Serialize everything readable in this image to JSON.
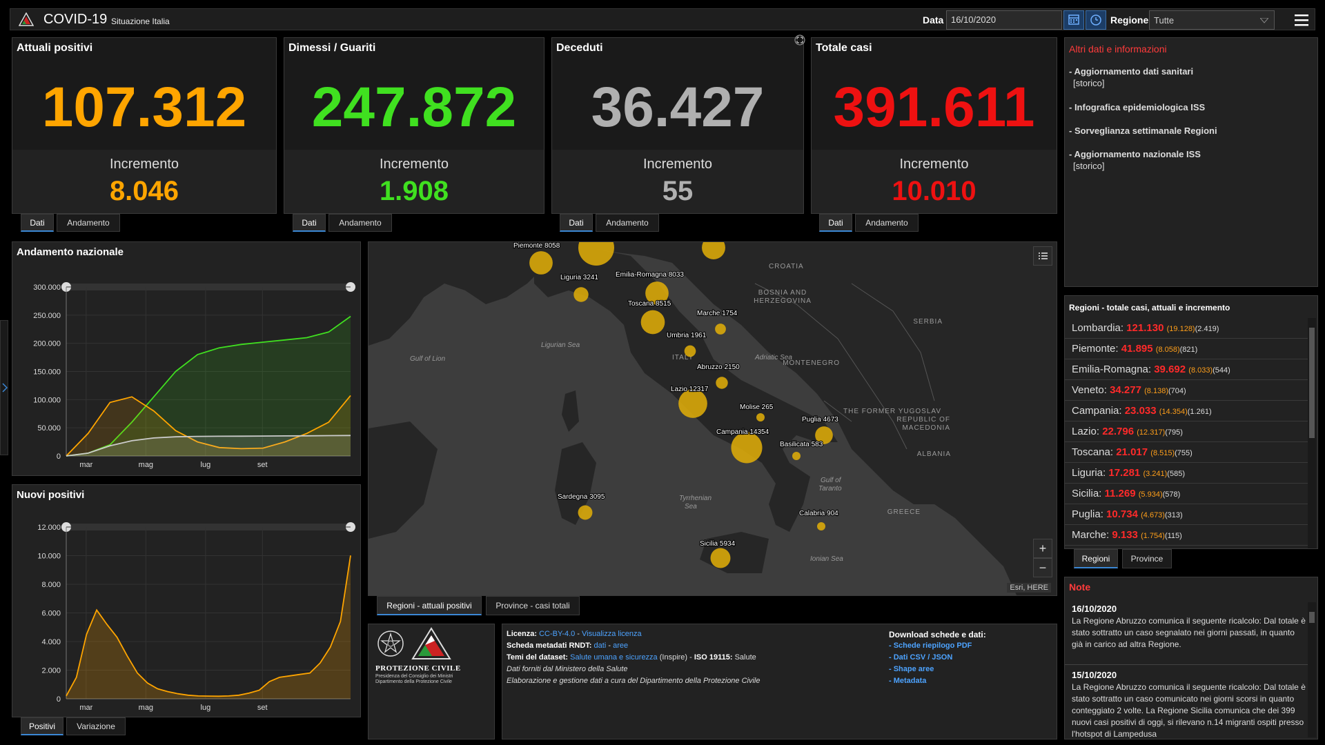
{
  "header": {
    "title": "COVID-19",
    "subtitle": "Situazione Italia",
    "date_label": "Data",
    "date_value": "16/10/2020",
    "region_label": "Regione",
    "region_value": "Tutte"
  },
  "stats": [
    {
      "title": "Attuali positivi",
      "value": "107.312",
      "inc_label": "Incremento",
      "inc": "8.046",
      "color": "#ffa500"
    },
    {
      "title": "Dimessi / Guariti",
      "value": "247.872",
      "inc_label": "Incremento",
      "inc": "1.908",
      "color": "#40e020"
    },
    {
      "title": "Deceduti",
      "value": "36.427",
      "inc_label": "Incremento",
      "inc": "55",
      "color": "#b0b0b0"
    },
    {
      "title": "Totale casi",
      "value": "391.611",
      "inc_label": "Incremento",
      "inc": "10.010",
      "color": "#ee1111"
    }
  ],
  "stat_tabs": {
    "dati": "Dati",
    "andamento": "Andamento"
  },
  "info": {
    "title": "Altri dati e informazioni",
    "links": [
      {
        "text": "- Aggiornamento dati sanitari",
        "sub": "[storico]"
      },
      {
        "text": "- Infografica epidemiologica ISS",
        "sub": ""
      },
      {
        "text": "- Sorveglianza settimanale Regioni",
        "sub": ""
      },
      {
        "text": "- Aggiornamento nazionale ISS",
        "sub": "[storico]"
      }
    ]
  },
  "chart_data": [
    {
      "type": "line",
      "title": "Andamento nazionale",
      "xlabel": "",
      "ylabel": "",
      "x_ticks": [
        "mar",
        "mag",
        "lug",
        "set"
      ],
      "y_ticks": [
        "300.000",
        "250.000",
        "200.000",
        "150.000",
        "100.000",
        "50.000",
        "0"
      ],
      "ylim": [
        0,
        300000
      ],
      "grid": true,
      "series": [
        {
          "color": "#40e020",
          "values": [
            0,
            5000,
            20000,
            60000,
            105000,
            150000,
            180000,
            192000,
            198000,
            202000,
            206000,
            210000,
            220000,
            247872
          ]
        },
        {
          "color": "#ffa500",
          "values": [
            0,
            40000,
            95000,
            105000,
            80000,
            45000,
            25000,
            15000,
            13000,
            14000,
            25000,
            40000,
            60000,
            107312
          ]
        },
        {
          "color": "#cccccc",
          "values": [
            0,
            5000,
            18000,
            27000,
            32000,
            34000,
            34800,
            35000,
            35200,
            35400,
            35600,
            35800,
            36100,
            36427
          ]
        }
      ]
    },
    {
      "type": "area",
      "title": "Nuovi positivi",
      "xlabel": "",
      "ylabel": "",
      "x_ticks": [
        "mar",
        "mag",
        "lug",
        "set"
      ],
      "y_ticks": [
        "12.000",
        "10.000",
        "8.000",
        "6.000",
        "4.000",
        "2.000",
        "0"
      ],
      "ylim": [
        0,
        12000
      ],
      "grid": true,
      "series": [
        {
          "color": "#ffa500",
          "values": [
            200,
            1500,
            4500,
            6200,
            5200,
            4300,
            3000,
            1800,
            1100,
            700,
            500,
            350,
            250,
            200,
            190,
            180,
            200,
            250,
            400,
            600,
            1200,
            1500,
            1600,
            1700,
            1800,
            2500,
            3600,
            5400,
            10010
          ]
        }
      ]
    }
  ],
  "chart_tabs": {
    "positivi": "Positivi",
    "variazione": "Variazione"
  },
  "map": {
    "tabs": [
      "Regioni - attuali positivi",
      "Province - casi totali"
    ],
    "attribution": "Esri, HERE",
    "geo_labels": [
      {
        "text": "CROATIA"
      },
      {
        "text": "BOSNIA AND"
      },
      {
        "text": "HERZEGOVINA"
      },
      {
        "text": "SERBIA"
      },
      {
        "text": "MONTENEGRO"
      },
      {
        "text": "THE FORMER YUGOSLAV"
      },
      {
        "text": "REPUBLIC OF"
      },
      {
        "text": "MACEDONIA"
      },
      {
        "text": "ALBANIA"
      },
      {
        "text": "GREECE"
      },
      {
        "text": "Gulf of Lion"
      },
      {
        "text": "Ligurian Sea"
      },
      {
        "text": "Adriatic Sea"
      },
      {
        "text": "Tyrrhenian"
      },
      {
        "text": "Sea"
      },
      {
        "text": "Gulf of"
      },
      {
        "text": "Taranto"
      },
      {
        "text": "Ionian Sea"
      },
      {
        "text": "ITALY"
      }
    ],
    "bubbles": [
      {
        "label": "Piemonte 8058",
        "value": 8058
      },
      {
        "label": "",
        "value": 19128
      },
      {
        "label": "",
        "value": 8138
      },
      {
        "label": "Liguria 3241",
        "value": 3241
      },
      {
        "label": "Emilia-Romagna 8033",
        "value": 8033
      },
      {
        "label": "Toscana 8515",
        "value": 8515
      },
      {
        "label": "Marche 1754",
        "value": 1754
      },
      {
        "label": "Umbria 1961",
        "value": 1961
      },
      {
        "label": "Abruzzo 2150",
        "value": 2150
      },
      {
        "label": "Lazio 12317",
        "value": 12317
      },
      {
        "label": "Molise 265",
        "value": 265
      },
      {
        "label": "Puglia 4673",
        "value": 4673
      },
      {
        "label": "Campania 14354",
        "value": 14354
      },
      {
        "label": "Basilicata 583",
        "value": 583
      },
      {
        "label": "Sardegna 3095",
        "value": 3095
      },
      {
        "label": "Calabria 904",
        "value": 904
      },
      {
        "label": "Sicilia 5934",
        "value": 5934
      }
    ]
  },
  "regions": {
    "title": "Regioni - totale casi, attuali e incremento",
    "rows": [
      {
        "name": "Lombardia:",
        "tot": "121.130",
        "att": "(19.128)",
        "inc": "(2.419)"
      },
      {
        "name": "Piemonte:",
        "tot": "41.895",
        "att": "(8.058)",
        "inc": "(821)"
      },
      {
        "name": "Emilia-Romagna:",
        "tot": "39.692",
        "att": "(8.033)",
        "inc": "(544)"
      },
      {
        "name": "Veneto:",
        "tot": "34.277",
        "att": "(8.138)",
        "inc": "(704)"
      },
      {
        "name": "Campania:",
        "tot": "23.033",
        "att": "(14.354)",
        "inc": "(1.261)"
      },
      {
        "name": "Lazio:",
        "tot": "22.796",
        "att": "(12.317)",
        "inc": "(795)"
      },
      {
        "name": "Toscana:",
        "tot": "21.017",
        "att": "(8.515)",
        "inc": "(755)"
      },
      {
        "name": "Liguria:",
        "tot": "17.281",
        "att": "(3.241)",
        "inc": "(585)"
      },
      {
        "name": "Sicilia:",
        "tot": "11.269",
        "att": "(5.934)",
        "inc": "(578)"
      },
      {
        "name": "Puglia:",
        "tot": "10.734",
        "att": "(4.673)",
        "inc": "(313)"
      },
      {
        "name": "Marche:",
        "tot": "9.133",
        "att": "(1.754)",
        "inc": "(115)"
      }
    ],
    "tabs": [
      "Regioni",
      "Province"
    ]
  },
  "notes": {
    "title": "Note",
    "items": [
      {
        "date": "16/10/2020",
        "text": "La Regione Abruzzo comunica il seguente ricalcolo: Dal totale è stato sottratto un caso segnalato nei giorni passati, in quanto già in carico ad altra Regione."
      },
      {
        "date": "15/10/2020",
        "text": "La Regione Abruzzo comunica il seguente ricalcolo: Dal totale è stato sottratto un caso comunicato nei giorni scorsi in quanto conteggiato 2 volte. La Regione Sicilia comunica che dei 399 nuovi casi positivi di oggi, si rilevano n.14 migranti ospiti presso l'hotspot di Lampedusa"
      }
    ]
  },
  "footer": {
    "logo_text": "PROTEZIONE CIVILE",
    "logo_sub1": "Presidenza del Consiglio dei Ministri",
    "logo_sub2": "Dipartimento della Protezione Civile",
    "lic_label": "Licenza:",
    "lic_value": "CC-BY-4.0",
    "lic_sep": " - ",
    "lic_link": "Visualizza licenza",
    "meta_label": "Scheda metadati RNDT:",
    "meta_dati": "dati",
    "meta_sep": " - ",
    "meta_aree": "aree",
    "temi_label": "Temi del dataset:",
    "temi_link": "Salute umana e sicurezza",
    "temi_rest": " (Inspire) - ",
    "iso_label": "ISO 19115:",
    "iso_value": " Salute",
    "line4": "Dati forniti dal Ministero della Salute",
    "line5": "Elaborazione e gestione dati a cura del Dipartimento della Protezione Civile",
    "download_title": "Download schede e dati:",
    "downloads": [
      "- Schede riepilogo PDF",
      "- Dati CSV / JSON",
      "- Shape aree",
      "- Metadata"
    ]
  }
}
